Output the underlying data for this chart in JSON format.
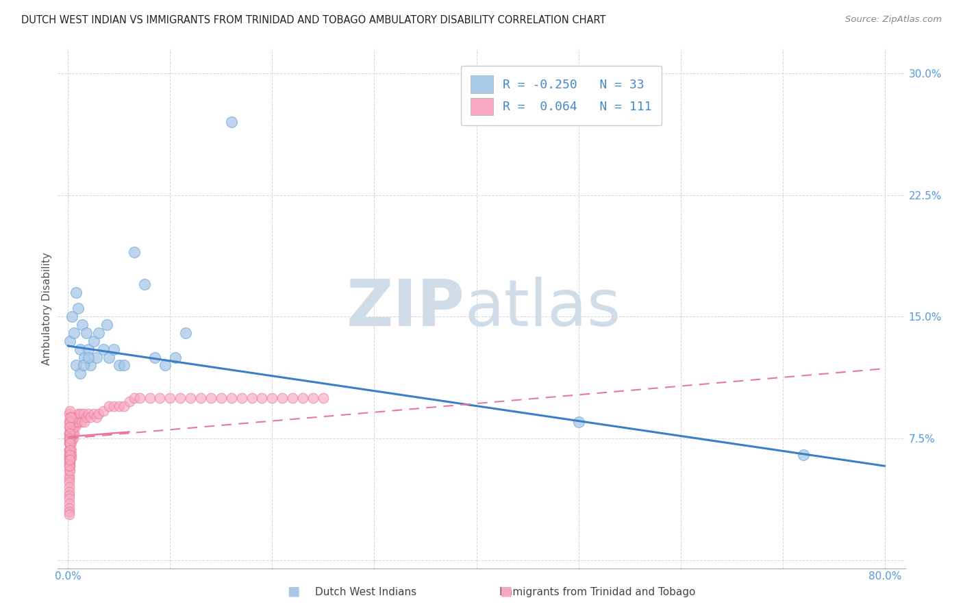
{
  "title": "DUTCH WEST INDIAN VS IMMIGRANTS FROM TRINIDAD AND TOBAGO AMBULATORY DISABILITY CORRELATION CHART",
  "source": "Source: ZipAtlas.com",
  "ylabel": "Ambulatory Disability",
  "xlim": [
    -0.01,
    0.82
  ],
  "ylim": [
    -0.005,
    0.315
  ],
  "xticks": [
    0.0,
    0.1,
    0.2,
    0.3,
    0.4,
    0.5,
    0.6,
    0.7,
    0.8
  ],
  "xticklabels": [
    "0.0%",
    "",
    "",
    "",
    "",
    "",
    "",
    "",
    "80.0%"
  ],
  "yticks": [
    0.0,
    0.075,
    0.15,
    0.225,
    0.3
  ],
  "yticklabels": [
    "",
    "7.5%",
    "15.0%",
    "22.5%",
    "30.0%"
  ],
  "blue_R": -0.25,
  "blue_N": 33,
  "pink_R": 0.064,
  "pink_N": 111,
  "legend_label_blue": "Dutch West Indians",
  "legend_label_pink": "Immigrants from Trinidad and Tobago",
  "blue_color": "#A8C8E8",
  "blue_edge_color": "#6AAAD8",
  "pink_color": "#F8A8C0",
  "pink_edge_color": "#E87898",
  "blue_line_color": "#3A7EC8",
  "pink_line_color": "#E87898",
  "watermark_zip": "ZIP",
  "watermark_atlas": "atlas",
  "watermark_color": "#D0DDE8",
  "blue_line_x": [
    0.0,
    0.8
  ],
  "blue_line_y": [
    0.132,
    0.058
  ],
  "pink_line_x": [
    0.0,
    0.8
  ],
  "pink_line_y": [
    0.075,
    0.118
  ],
  "blue_x": [
    0.002,
    0.004,
    0.006,
    0.008,
    0.01,
    0.012,
    0.014,
    0.016,
    0.018,
    0.02,
    0.022,
    0.025,
    0.028,
    0.03,
    0.035,
    0.038,
    0.04,
    0.045,
    0.05,
    0.055,
    0.065,
    0.075,
    0.085,
    0.095,
    0.105,
    0.115,
    0.16,
    0.5,
    0.72,
    0.008,
    0.012,
    0.015,
    0.02
  ],
  "blue_y": [
    0.135,
    0.15,
    0.14,
    0.165,
    0.155,
    0.13,
    0.145,
    0.125,
    0.14,
    0.13,
    0.12,
    0.135,
    0.125,
    0.14,
    0.13,
    0.145,
    0.125,
    0.13,
    0.12,
    0.12,
    0.19,
    0.17,
    0.125,
    0.12,
    0.125,
    0.14,
    0.27,
    0.085,
    0.065,
    0.12,
    0.115,
    0.12,
    0.125
  ],
  "pink_x": [
    0.001,
    0.001,
    0.001,
    0.001,
    0.001,
    0.001,
    0.001,
    0.001,
    0.001,
    0.001,
    0.001,
    0.001,
    0.001,
    0.001,
    0.001,
    0.001,
    0.001,
    0.001,
    0.001,
    0.001,
    0.002,
    0.002,
    0.002,
    0.002,
    0.002,
    0.002,
    0.002,
    0.002,
    0.002,
    0.002,
    0.003,
    0.003,
    0.003,
    0.003,
    0.003,
    0.003,
    0.003,
    0.004,
    0.004,
    0.004,
    0.005,
    0.005,
    0.005,
    0.005,
    0.006,
    0.006,
    0.006,
    0.007,
    0.007,
    0.008,
    0.008,
    0.009,
    0.01,
    0.01,
    0.012,
    0.013,
    0.015,
    0.016,
    0.018,
    0.02,
    0.022,
    0.025,
    0.028,
    0.03,
    0.035,
    0.04,
    0.045,
    0.05,
    0.055,
    0.06,
    0.065,
    0.07,
    0.08,
    0.09,
    0.1,
    0.11,
    0.12,
    0.13,
    0.14,
    0.15,
    0.16,
    0.17,
    0.18,
    0.19,
    0.2,
    0.21,
    0.22,
    0.23,
    0.24,
    0.25,
    0.001,
    0.001,
    0.001,
    0.001,
    0.001,
    0.001,
    0.001,
    0.001,
    0.001,
    0.001,
    0.002,
    0.002,
    0.002,
    0.002,
    0.002,
    0.002,
    0.002,
    0.002,
    0.002,
    0.002,
    0.003
  ],
  "pink_y": [
    0.075,
    0.078,
    0.072,
    0.068,
    0.065,
    0.063,
    0.06,
    0.058,
    0.055,
    0.052,
    0.05,
    0.048,
    0.045,
    0.042,
    0.04,
    0.038,
    0.035,
    0.032,
    0.03,
    0.028,
    0.08,
    0.078,
    0.075,
    0.072,
    0.068,
    0.065,
    0.063,
    0.06,
    0.058,
    0.055,
    0.08,
    0.078,
    0.075,
    0.072,
    0.068,
    0.065,
    0.063,
    0.08,
    0.078,
    0.075,
    0.085,
    0.082,
    0.078,
    0.075,
    0.085,
    0.082,
    0.078,
    0.085,
    0.082,
    0.088,
    0.085,
    0.088,
    0.09,
    0.085,
    0.09,
    0.085,
    0.09,
    0.085,
    0.088,
    0.09,
    0.088,
    0.09,
    0.088,
    0.09,
    0.092,
    0.095,
    0.095,
    0.095,
    0.095,
    0.098,
    0.1,
    0.1,
    0.1,
    0.1,
    0.1,
    0.1,
    0.1,
    0.1,
    0.1,
    0.1,
    0.1,
    0.1,
    0.1,
    0.1,
    0.1,
    0.1,
    0.1,
    0.1,
    0.1,
    0.1,
    0.09,
    0.085,
    0.082,
    0.078,
    0.075,
    0.072,
    0.068,
    0.065,
    0.062,
    0.058,
    0.092,
    0.088,
    0.085,
    0.082,
    0.078,
    0.075,
    0.072,
    0.068,
    0.065,
    0.062,
    0.088
  ]
}
